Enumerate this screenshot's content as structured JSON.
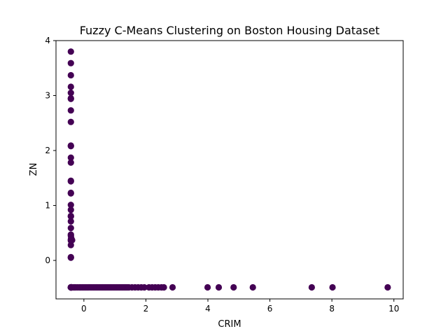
{
  "chart_data": {
    "type": "scatter",
    "title": "Fuzzy C-Means Clustering on Boston Housing Dataset",
    "xlabel": "CRIM",
    "ylabel": "ZN",
    "xlim": [
      -0.9,
      10.3
    ],
    "ylim": [
      -0.7,
      4.0
    ],
    "xticks": [
      0,
      2,
      4,
      6,
      8,
      10
    ],
    "yticks": [
      0,
      1,
      2,
      3,
      4
    ],
    "grid": false,
    "legend": "none",
    "point_color": "#440154",
    "series": [
      {
        "x": [
          -0.42,
          -0.42,
          -0.42,
          -0.42,
          -0.42,
          -0.42,
          -0.42,
          -0.42,
          -0.42,
          -0.42,
          -0.42,
          -0.42,
          -0.42,
          -0.42,
          -0.42,
          -0.42,
          -0.42,
          -0.42,
          -0.42,
          -0.42,
          -0.42,
          -0.42,
          -0.42,
          -0.42,
          -0.42,
          -0.42,
          -0.42,
          -0.42,
          -0.42,
          -0.42,
          -0.42,
          -0.42,
          -0.42,
          -0.42,
          -0.42,
          -0.42,
          -0.42,
          -0.41,
          -0.41,
          -0.4,
          -0.4,
          -0.39,
          -0.39,
          -0.38,
          -0.33,
          -0.3,
          -0.26,
          -0.2,
          -0.14,
          -0.1,
          -0.05,
          0.0,
          0.05,
          0.1,
          0.15,
          0.2,
          0.25,
          0.3,
          0.35,
          0.4,
          0.45,
          0.5,
          0.55,
          0.6,
          0.65,
          0.7,
          0.75,
          0.8,
          0.85,
          0.9,
          0.95,
          1.0,
          1.05,
          1.1,
          1.15,
          1.2,
          1.25,
          1.3,
          1.35,
          1.4,
          1.45,
          1.55,
          1.65,
          1.75,
          1.85,
          1.95,
          2.1,
          2.2,
          2.3,
          2.4,
          2.5,
          2.58,
          2.86,
          3.99,
          4.35,
          4.83,
          5.45,
          7.35,
          8.02,
          9.8
        ],
        "y": [
          3.8,
          3.59,
          3.37,
          3.16,
          3.05,
          2.95,
          2.94,
          2.73,
          2.52,
          2.09,
          2.08,
          1.87,
          1.78,
          1.45,
          1.44,
          1.23,
          1.22,
          1.01,
          0.92,
          0.81,
          0.8,
          0.71,
          0.59,
          0.47,
          0.45,
          0.38,
          0.36,
          0.28,
          0.06,
          0.05,
          -0.49,
          -0.49,
          -0.49,
          -0.49,
          -0.49,
          -0.49,
          -0.49,
          -0.49,
          0.41,
          -0.49,
          0.38,
          -0.49,
          -0.49,
          0.37,
          -0.49,
          -0.49,
          -0.49,
          -0.49,
          -0.49,
          -0.49,
          -0.49,
          -0.49,
          -0.49,
          -0.49,
          -0.49,
          -0.49,
          -0.49,
          -0.49,
          -0.49,
          -0.49,
          -0.49,
          -0.49,
          -0.49,
          -0.49,
          -0.49,
          -0.49,
          -0.49,
          -0.49,
          -0.49,
          -0.49,
          -0.49,
          -0.49,
          -0.49,
          -0.49,
          -0.49,
          -0.49,
          -0.49,
          -0.49,
          -0.49,
          -0.49,
          -0.49,
          -0.49,
          -0.49,
          -0.49,
          -0.49,
          -0.49,
          -0.49,
          -0.49,
          -0.49,
          -0.49,
          -0.49,
          -0.49,
          -0.49,
          -0.49,
          -0.49,
          -0.49,
          -0.49,
          -0.49,
          -0.49,
          -0.49
        ]
      }
    ]
  }
}
